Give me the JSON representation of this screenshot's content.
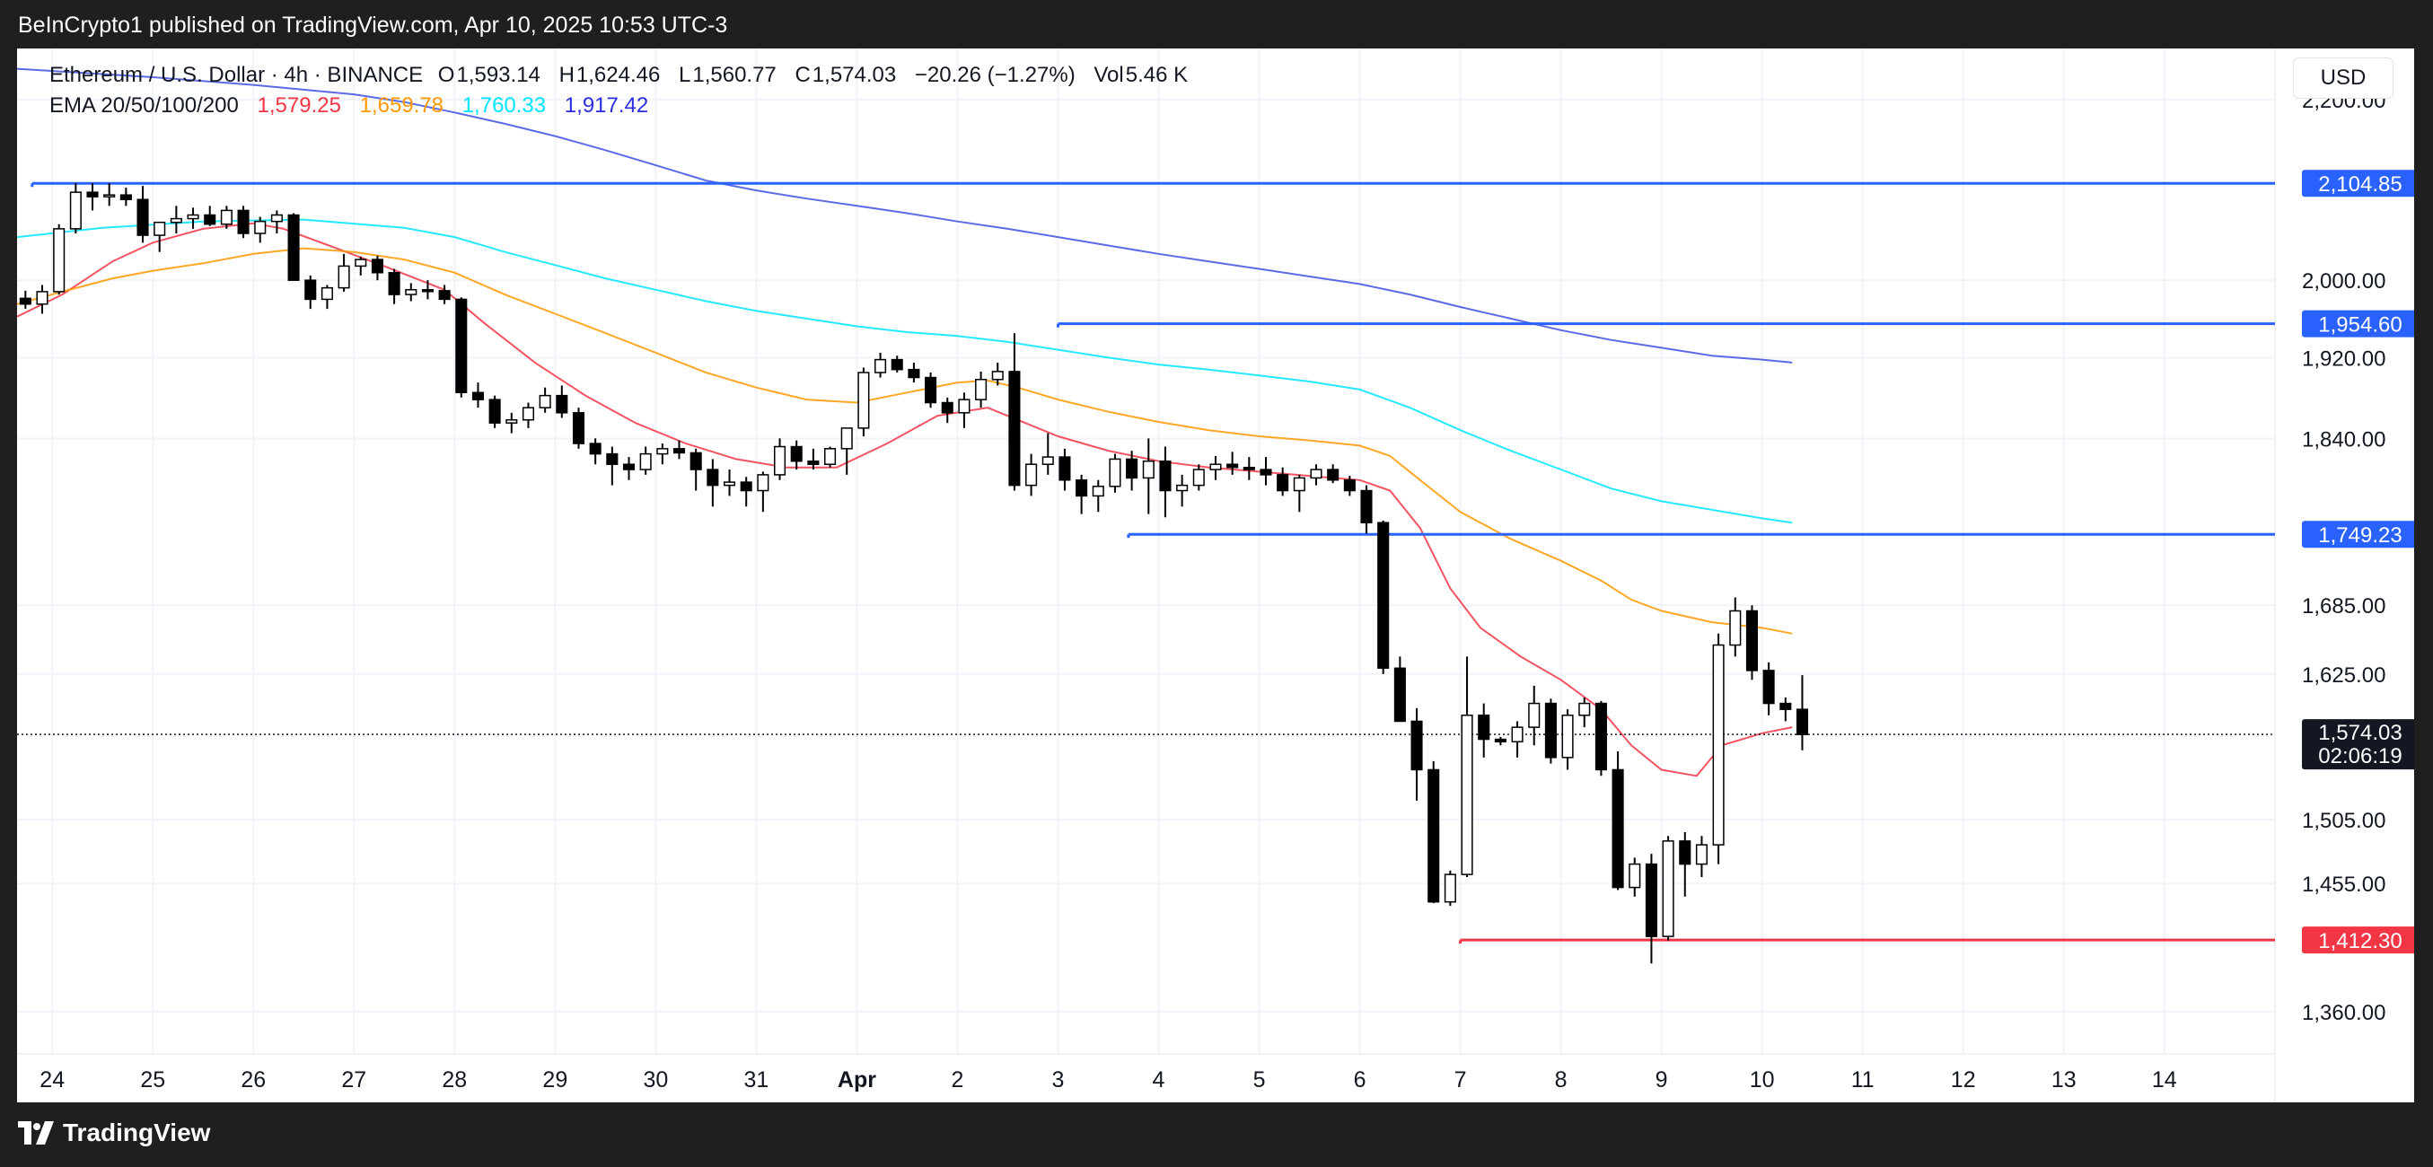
{
  "header": {
    "published": "BeInCrypto1 published on TradingView.com, Apr 10, 2025 10:53 UTC-3"
  },
  "legend": {
    "symbol": "Ethereum / U.S. Dollar · 4h · BINANCE",
    "ohlc": [
      {
        "k": "O",
        "v": "1,593.14"
      },
      {
        "k": "H",
        "v": "1,624.46"
      },
      {
        "k": "L",
        "v": "1,560.77"
      },
      {
        "k": "C",
        "v": "1,574.03"
      }
    ],
    "change": "−20.26 (−1.27%)",
    "vol_label": "Vol",
    "vol": "5.46 K",
    "ema_label": "EMA 20/50/100/200",
    "ema_values": [
      "1,579.25",
      "1,659.78",
      "1,760.33",
      "1,917.42"
    ]
  },
  "currency": "USD",
  "footer": {
    "brand": "TradingView"
  },
  "colors": {
    "ema20": "#f23645",
    "ema50": "#ff9800",
    "ema100": "#00e5ff",
    "ema200": "#3f51e0",
    "resistance": "#2962ff",
    "support": "#f23645"
  },
  "chart_data": {
    "type": "candlestick",
    "title": "Ethereum / U.S. Dollar · 4h · BINANCE",
    "y_scale": "log",
    "ylim": [
      1330,
      2260
    ],
    "y_ticks": [
      "2,200.00",
      "2,000.00",
      "1,920.00",
      "1,840.00",
      "1,685.00",
      "1,625.00",
      "1,505.00",
      "1,455.00",
      "1,360.00"
    ],
    "y_tick_values": [
      2200,
      2000,
      1920,
      1840,
      1685,
      1625,
      1505,
      1455,
      1360
    ],
    "x_ticks": [
      "24",
      "25",
      "26",
      "27",
      "28",
      "29",
      "30",
      "31",
      "Apr",
      "2",
      "3",
      "4",
      "5",
      "6",
      "7",
      "8",
      "9",
      "10",
      "11",
      "12",
      "13",
      "14"
    ],
    "x_tick_days": [
      24,
      25,
      26,
      27,
      28,
      29,
      30,
      31,
      32,
      33,
      34,
      35,
      36,
      37,
      38,
      39,
      40,
      41,
      42,
      43,
      44,
      45
    ],
    "x_day_range": [
      23.65,
      46.1
    ],
    "candles_per_day": 6,
    "first_candle_day": 23.65,
    "candles": [
      [
        1981,
        1989,
        1970,
        1975
      ],
      [
        1975,
        1995,
        1965,
        1988
      ],
      [
        1988,
        2060,
        1985,
        2055
      ],
      [
        2055,
        2105,
        2050,
        2095
      ],
      [
        2095,
        2105,
        2075,
        2090
      ],
      [
        2090,
        2105,
        2080,
        2092
      ],
      [
        2092,
        2100,
        2080,
        2087
      ],
      [
        2087,
        2102,
        2040,
        2048
      ],
      [
        2048,
        2062,
        2030,
        2062
      ],
      [
        2062,
        2080,
        2050,
        2066
      ],
      [
        2066,
        2078,
        2055,
        2070
      ],
      [
        2070,
        2080,
        2058,
        2060
      ],
      [
        2060,
        2080,
        2055,
        2075
      ],
      [
        2075,
        2080,
        2045,
        2050
      ],
      [
        2050,
        2068,
        2040,
        2063
      ],
      [
        2063,
        2075,
        2050,
        2070
      ],
      [
        2070,
        2072,
        2000,
        2000
      ],
      [
        2000,
        2005,
        1970,
        1980
      ],
      [
        1980,
        1995,
        1970,
        1992
      ],
      [
        1992,
        2028,
        1988,
        2015
      ],
      [
        2015,
        2025,
        2005,
        2022
      ],
      [
        2022,
        2026,
        2000,
        2008
      ],
      [
        2008,
        2012,
        1975,
        1985
      ],
      [
        1985,
        1997,
        1978,
        1990
      ],
      [
        1990,
        2000,
        1980,
        1989
      ],
      [
        1989,
        1995,
        1975,
        1980
      ],
      [
        1980,
        1982,
        1880,
        1885
      ],
      [
        1885,
        1895,
        1870,
        1878
      ],
      [
        1878,
        1882,
        1850,
        1855
      ],
      [
        1855,
        1865,
        1845,
        1858
      ],
      [
        1858,
        1875,
        1850,
        1870
      ],
      [
        1870,
        1890,
        1865,
        1882
      ],
      [
        1882,
        1892,
        1860,
        1865
      ],
      [
        1865,
        1870,
        1830,
        1835
      ],
      [
        1835,
        1840,
        1815,
        1825
      ],
      [
        1825,
        1832,
        1795,
        1815
      ],
      [
        1815,
        1822,
        1800,
        1810
      ],
      [
        1810,
        1832,
        1805,
        1825
      ],
      [
        1825,
        1835,
        1815,
        1830
      ],
      [
        1830,
        1838,
        1820,
        1826
      ],
      [
        1826,
        1830,
        1790,
        1810
      ],
      [
        1810,
        1820,
        1775,
        1795
      ],
      [
        1795,
        1810,
        1785,
        1798
      ],
      [
        1798,
        1803,
        1775,
        1790
      ],
      [
        1790,
        1808,
        1770,
        1805
      ],
      [
        1805,
        1840,
        1800,
        1832
      ],
      [
        1832,
        1838,
        1810,
        1818
      ],
      [
        1818,
        1830,
        1810,
        1815
      ],
      [
        1815,
        1832,
        1812,
        1830
      ],
      [
        1830,
        1850,
        1805,
        1850
      ],
      [
        1850,
        1910,
        1842,
        1905
      ],
      [
        1905,
        1925,
        1900,
        1918
      ],
      [
        1918,
        1922,
        1905,
        1908
      ],
      [
        1908,
        1915,
        1895,
        1900
      ],
      [
        1900,
        1905,
        1870,
        1875
      ],
      [
        1875,
        1880,
        1855,
        1865
      ],
      [
        1865,
        1885,
        1850,
        1878
      ],
      [
        1878,
        1906,
        1870,
        1898
      ],
      [
        1898,
        1915,
        1892,
        1906
      ],
      [
        1906,
        1945,
        1790,
        1795
      ],
      [
        1795,
        1825,
        1785,
        1815
      ],
      [
        1815,
        1845,
        1805,
        1822
      ],
      [
        1822,
        1830,
        1790,
        1800
      ],
      [
        1800,
        1805,
        1768,
        1785
      ],
      [
        1785,
        1800,
        1770,
        1794
      ],
      [
        1794,
        1825,
        1788,
        1820
      ],
      [
        1820,
        1828,
        1790,
        1802
      ],
      [
        1802,
        1840,
        1768,
        1818
      ],
      [
        1818,
        1832,
        1765,
        1790
      ],
      [
        1790,
        1805,
        1775,
        1795
      ],
      [
        1795,
        1815,
        1790,
        1810
      ],
      [
        1810,
        1823,
        1800,
        1815
      ],
      [
        1815,
        1827,
        1805,
        1812
      ],
      [
        1812,
        1822,
        1800,
        1810
      ],
      [
        1810,
        1822,
        1795,
        1805
      ],
      [
        1805,
        1812,
        1785,
        1790
      ],
      [
        1790,
        1805,
        1770,
        1802
      ],
      [
        1802,
        1815,
        1795,
        1810
      ],
      [
        1810,
        1815,
        1797,
        1800
      ],
      [
        1800,
        1804,
        1785,
        1790
      ],
      [
        1790,
        1795,
        1750,
        1760
      ],
      [
        1760,
        1762,
        1625,
        1630
      ],
      [
        1630,
        1640,
        1585,
        1585
      ],
      [
        1585,
        1596,
        1520,
        1545
      ],
      [
        1545,
        1552,
        1440,
        1441
      ],
      [
        1441,
        1465,
        1438,
        1462
      ],
      [
        1462,
        1640,
        1460,
        1590
      ],
      [
        1590,
        1600,
        1555,
        1570
      ],
      [
        1570,
        1572,
        1565,
        1568
      ],
      [
        1568,
        1585,
        1555,
        1580
      ],
      [
        1580,
        1615,
        1565,
        1600
      ],
      [
        1600,
        1604,
        1550,
        1555
      ],
      [
        1555,
        1595,
        1545,
        1590
      ],
      [
        1590,
        1605,
        1580,
        1600
      ],
      [
        1600,
        1602,
        1540,
        1545
      ],
      [
        1545,
        1560,
        1450,
        1452
      ],
      [
        1452,
        1475,
        1445,
        1470
      ],
      [
        1470,
        1478,
        1395,
        1415
      ],
      [
        1415,
        1492,
        1412,
        1488
      ],
      [
        1488,
        1495,
        1445,
        1470
      ],
      [
        1470,
        1492,
        1460,
        1485
      ],
      [
        1485,
        1660,
        1470,
        1650
      ],
      [
        1650,
        1692,
        1640,
        1680
      ],
      [
        1680,
        1685,
        1620,
        1628
      ],
      [
        1628,
        1635,
        1590,
        1600
      ],
      [
        1600,
        1605,
        1585,
        1595
      ],
      [
        1595,
        1624,
        1561,
        1574
      ]
    ],
    "ema": [
      {
        "name": "EMA 20",
        "points": [
          [
            23.65,
            1962
          ],
          [
            24.1,
            1985
          ],
          [
            24.6,
            2020
          ],
          [
            25.0,
            2040
          ],
          [
            25.5,
            2055
          ],
          [
            26.0,
            2061
          ],
          [
            26.3,
            2055
          ],
          [
            26.8,
            2035
          ],
          [
            27.3,
            2015
          ],
          [
            27.9,
            1990
          ],
          [
            28.3,
            1955
          ],
          [
            28.8,
            1915
          ],
          [
            29.3,
            1882
          ],
          [
            29.8,
            1855
          ],
          [
            30.3,
            1835
          ],
          [
            30.8,
            1820
          ],
          [
            31.3,
            1812
          ],
          [
            31.8,
            1812
          ],
          [
            32.3,
            1835
          ],
          [
            32.8,
            1862
          ],
          [
            33.3,
            1870
          ],
          [
            33.6,
            1858
          ],
          [
            34.0,
            1842
          ],
          [
            34.5,
            1828
          ],
          [
            35.0,
            1818
          ],
          [
            35.5,
            1812
          ],
          [
            36.0,
            1808
          ],
          [
            36.5,
            1804
          ],
          [
            37.0,
            1800
          ],
          [
            37.3,
            1790
          ],
          [
            37.6,
            1755
          ],
          [
            37.9,
            1700
          ],
          [
            38.2,
            1665
          ],
          [
            38.6,
            1640
          ],
          [
            39.0,
            1620
          ],
          [
            39.4,
            1595
          ],
          [
            39.7,
            1565
          ],
          [
            40.0,
            1545
          ],
          [
            40.35,
            1540
          ],
          [
            40.6,
            1565
          ],
          [
            41.0,
            1575
          ],
          [
            41.3,
            1580
          ]
        ]
      },
      {
        "name": "EMA 50",
        "points": [
          [
            23.65,
            1975
          ],
          [
            24.1,
            1988
          ],
          [
            24.6,
            2002
          ],
          [
            25.0,
            2010
          ],
          [
            25.5,
            2018
          ],
          [
            26.0,
            2028
          ],
          [
            26.5,
            2034
          ],
          [
            27.0,
            2030
          ],
          [
            27.5,
            2022
          ],
          [
            28.0,
            2008
          ],
          [
            28.5,
            1985
          ],
          [
            29.0,
            1965
          ],
          [
            29.5,
            1945
          ],
          [
            30.0,
            1925
          ],
          [
            30.5,
            1905
          ],
          [
            31.0,
            1890
          ],
          [
            31.5,
            1878
          ],
          [
            32.0,
            1875
          ],
          [
            32.5,
            1885
          ],
          [
            33.0,
            1895
          ],
          [
            33.3,
            1897
          ],
          [
            33.6,
            1890
          ],
          [
            34.0,
            1878
          ],
          [
            34.5,
            1866
          ],
          [
            35.0,
            1856
          ],
          [
            35.5,
            1848
          ],
          [
            36.0,
            1842
          ],
          [
            36.5,
            1838
          ],
          [
            37.0,
            1833
          ],
          [
            37.3,
            1823
          ],
          [
            37.6,
            1800
          ],
          [
            38.0,
            1770
          ],
          [
            38.5,
            1745
          ],
          [
            39.0,
            1725
          ],
          [
            39.4,
            1707
          ],
          [
            39.7,
            1690
          ],
          [
            40.0,
            1680
          ],
          [
            40.5,
            1670
          ],
          [
            41.0,
            1665
          ],
          [
            41.3,
            1660
          ]
        ]
      },
      {
        "name": "EMA 100",
        "points": [
          [
            23.65,
            2046
          ],
          [
            24.5,
            2056
          ],
          [
            25.5,
            2063
          ],
          [
            26.5,
            2065
          ],
          [
            27.5,
            2056
          ],
          [
            28.0,
            2046
          ],
          [
            28.5,
            2030
          ],
          [
            29.0,
            2016
          ],
          [
            29.5,
            2002
          ],
          [
            30.0,
            1990
          ],
          [
            30.5,
            1978
          ],
          [
            31.0,
            1968
          ],
          [
            31.5,
            1960
          ],
          [
            32.0,
            1952
          ],
          [
            32.5,
            1946
          ],
          [
            33.0,
            1942
          ],
          [
            33.5,
            1936
          ],
          [
            34.0,
            1928
          ],
          [
            34.5,
            1920
          ],
          [
            35.0,
            1913
          ],
          [
            35.5,
            1908
          ],
          [
            36.0,
            1902
          ],
          [
            36.5,
            1896
          ],
          [
            37.0,
            1888
          ],
          [
            37.5,
            1870
          ],
          [
            38.0,
            1848
          ],
          [
            38.5,
            1828
          ],
          [
            39.0,
            1810
          ],
          [
            39.5,
            1792
          ],
          [
            40.0,
            1780
          ],
          [
            40.5,
            1772
          ],
          [
            41.0,
            1764
          ],
          [
            41.3,
            1760
          ]
        ]
      },
      {
        "name": "EMA 200",
        "points": [
          [
            23.65,
            2236
          ],
          [
            25.0,
            2226
          ],
          [
            26.0,
            2217
          ],
          [
            27.0,
            2206
          ],
          [
            27.5,
            2197
          ],
          [
            28.0,
            2185
          ],
          [
            28.5,
            2172
          ],
          [
            29.0,
            2158
          ],
          [
            29.5,
            2142
          ],
          [
            30.0,
            2125
          ],
          [
            30.5,
            2108
          ],
          [
            31.0,
            2097
          ],
          [
            31.5,
            2088
          ],
          [
            32.0,
            2080
          ],
          [
            32.5,
            2072
          ],
          [
            33.0,
            2063
          ],
          [
            33.5,
            2055
          ],
          [
            34.0,
            2046
          ],
          [
            34.5,
            2037
          ],
          [
            35.0,
            2028
          ],
          [
            35.5,
            2020
          ],
          [
            36.0,
            2012
          ],
          [
            36.5,
            2004
          ],
          [
            37.0,
            1996
          ],
          [
            37.5,
            1985
          ],
          [
            38.0,
            1972
          ],
          [
            38.5,
            1960
          ],
          [
            39.0,
            1948
          ],
          [
            39.5,
            1938
          ],
          [
            40.0,
            1930
          ],
          [
            40.5,
            1922
          ],
          [
            41.0,
            1918
          ],
          [
            41.3,
            1915
          ]
        ]
      }
    ],
    "levels": [
      {
        "value": 2104.85,
        "label": "2,104.85",
        "from_day": 23.8,
        "kind": "resistance"
      },
      {
        "value": 1954.6,
        "label": "1,954.60",
        "from_day": 34.0,
        "kind": "resistance"
      },
      {
        "value": 1749.23,
        "label": "1,749.23",
        "from_day": 34.7,
        "kind": "resistance"
      },
      {
        "value": 1412.3,
        "label": "1,412.30",
        "from_day": 38.0,
        "kind": "support"
      }
    ],
    "last_price": {
      "value": 1574.03,
      "label": "1,574.03",
      "countdown": "02:06:19"
    }
  }
}
